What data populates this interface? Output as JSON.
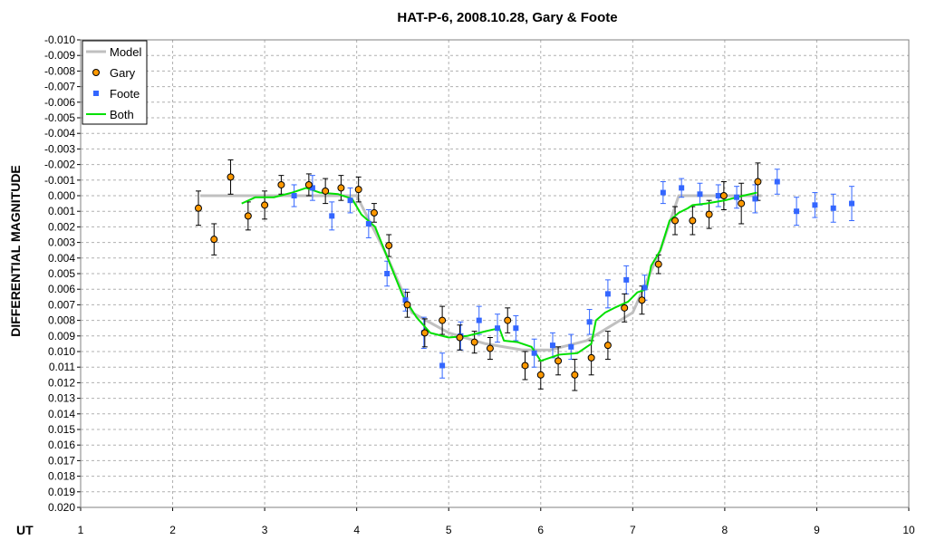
{
  "chart_data": {
    "type": "scatter",
    "title": "HAT-P-6, 2008.10.28, Gary & Foote",
    "xlabel": "UT",
    "ylabel": "DIFFERENTIAL MAGNITUDE",
    "xlim": [
      1,
      10
    ],
    "ylim": [
      0.02,
      -0.01
    ],
    "y_inverted": true,
    "grid": true,
    "legend_position": "top-left",
    "x_ticks": [
      "1",
      "2",
      "3",
      "4",
      "5",
      "6",
      "7",
      "8",
      "9",
      "10"
    ],
    "y_ticks": [
      "-0.010",
      "-0.009",
      "-0.008",
      "-0.007",
      "-0.006",
      "-0.005",
      "-0.004",
      "-0.003",
      "-0.002",
      "-0.001",
      "0.000",
      "0.001",
      "0.002",
      "0.003",
      "0.004",
      "0.005",
      "0.006",
      "0.007",
      "0.008",
      "0.009",
      "0.010",
      "0.011",
      "0.012",
      "0.013",
      "0.014",
      "0.015",
      "0.016",
      "0.017",
      "0.018",
      "0.019",
      "0.020"
    ],
    "colors": {
      "model": "#c0c0c0",
      "gary": "#ff9900",
      "foote": "#3366ff",
      "both": "#00e000",
      "grid": "#b0b0b0"
    },
    "series": [
      {
        "name": "Model",
        "kind": "line",
        "x": [
          2.3,
          3.0,
          4.0,
          4.3,
          4.6,
          5.0,
          5.4,
          5.8,
          6.1,
          6.5,
          7.0,
          7.3,
          7.5,
          8.4
        ],
        "y": [
          0.0,
          0.0,
          0.0,
          0.0035,
          0.0075,
          0.0088,
          0.0095,
          0.0099,
          0.0099,
          0.0093,
          0.0075,
          0.0035,
          0.0,
          0.0
        ]
      },
      {
        "name": "Gary",
        "kind": "points",
        "x": [
          2.28,
          2.45,
          2.63,
          2.82,
          3.0,
          3.18,
          3.48,
          3.66,
          3.83,
          4.02,
          4.19,
          4.35,
          4.55,
          4.74,
          4.93,
          5.12,
          5.28,
          5.45,
          5.64,
          5.83,
          6.0,
          6.19,
          6.37,
          6.55,
          6.73,
          6.91,
          7.1,
          7.28,
          7.46,
          7.65,
          7.83,
          7.99,
          8.18,
          8.36
        ],
        "y": [
          0.0008,
          0.0028,
          -0.0012,
          0.0013,
          0.0006,
          -0.0007,
          -0.0007,
          -0.0003,
          -0.0005,
          -0.0004,
          0.0011,
          0.0032,
          0.007,
          0.0088,
          0.008,
          0.0091,
          0.0094,
          0.0098,
          0.008,
          0.0109,
          0.0115,
          0.0106,
          0.0115,
          0.0104,
          0.0096,
          0.0072,
          0.0067,
          0.0044,
          0.0016,
          0.0016,
          0.0012,
          0.0,
          0.0005,
          -0.0009
        ],
        "err": [
          0.0011,
          0.001,
          0.0011,
          0.0009,
          0.0009,
          0.0006,
          0.0007,
          0.0008,
          0.0008,
          0.0008,
          0.0006,
          0.0007,
          0.0008,
          0.0009,
          0.0009,
          0.0008,
          0.0007,
          0.0007,
          0.0008,
          0.0009,
          0.0009,
          0.0009,
          0.001,
          0.0011,
          0.0009,
          0.0009,
          0.0009,
          0.0006,
          0.0009,
          0.0009,
          0.0009,
          0.0009,
          0.0013,
          0.0012
        ]
      },
      {
        "name": "Foote",
        "kind": "points",
        "x": [
          3.32,
          3.52,
          3.73,
          3.93,
          4.13,
          4.33,
          4.53,
          4.73,
          4.93,
          5.13,
          5.33,
          5.53,
          5.73,
          5.93,
          6.13,
          6.33,
          6.53,
          6.73,
          6.93,
          7.13,
          7.33,
          7.53,
          7.73,
          7.93,
          8.13,
          8.33,
          8.57,
          8.78,
          8.98,
          9.18,
          9.38
        ],
        "y": [
          0.0,
          -0.0005,
          0.0013,
          0.0003,
          0.0018,
          0.005,
          0.0067,
          0.0088,
          0.0109,
          0.009,
          0.008,
          0.0085,
          0.0085,
          0.0101,
          0.0096,
          0.0097,
          0.0081,
          0.0063,
          0.0054,
          0.0059,
          -0.0002,
          -0.0005,
          -0.0001,
          0.0,
          0.0001,
          0.0002,
          -0.0009,
          0.001,
          0.0006,
          0.0008,
          0.0005
        ],
        "err": [
          0.0007,
          0.0008,
          0.0009,
          0.0008,
          0.0009,
          0.0008,
          0.0007,
          0.001,
          0.0008,
          0.0009,
          0.0009,
          0.0009,
          0.0008,
          0.0009,
          0.0008,
          0.0008,
          0.0008,
          0.0009,
          0.0009,
          0.0008,
          0.0007,
          0.0006,
          0.0007,
          0.0007,
          0.0007,
          0.0009,
          0.0008,
          0.0009,
          0.0008,
          0.0009,
          0.0011
        ]
      },
      {
        "name": "Both",
        "kind": "line",
        "x": [
          2.75,
          2.9,
          3.1,
          3.3,
          3.45,
          3.6,
          3.8,
          3.95,
          4.05,
          4.2,
          4.35,
          4.5,
          4.65,
          4.8,
          5.0,
          5.2,
          5.4,
          5.55,
          5.6,
          5.75,
          5.9,
          6.0,
          6.2,
          6.4,
          6.55,
          6.6,
          6.7,
          6.8,
          6.95,
          7.05,
          7.15,
          7.2,
          7.3,
          7.4,
          7.5,
          7.6,
          7.65,
          7.8,
          8.0,
          8.2,
          8.35
        ],
        "y": [
          0.0005,
          0.0001,
          0.0001,
          -0.0002,
          -0.0005,
          -0.0002,
          -0.0001,
          0.0002,
          0.0012,
          0.002,
          0.0042,
          0.0064,
          0.0078,
          0.0088,
          0.0091,
          0.009,
          0.0087,
          0.0085,
          0.0093,
          0.0094,
          0.0097,
          0.0106,
          0.0102,
          0.0101,
          0.0095,
          0.008,
          0.0075,
          0.0072,
          0.0068,
          0.0062,
          0.006,
          0.0045,
          0.0035,
          0.0016,
          0.0011,
          0.0008,
          0.0006,
          0.0005,
          0.0003,
          0.0,
          -0.0002
        ]
      }
    ]
  }
}
